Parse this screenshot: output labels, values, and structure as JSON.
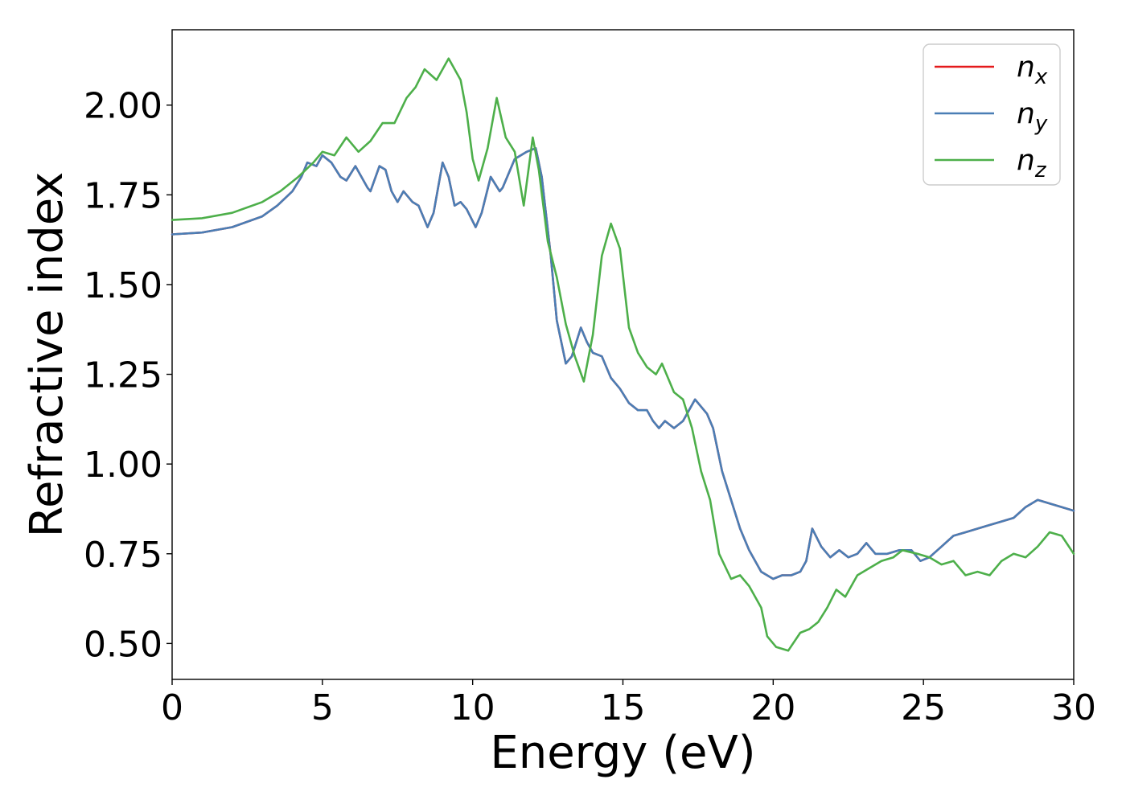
{
  "chart_data": {
    "type": "line",
    "title": "",
    "xlabel": "Energy (eV)",
    "ylabel": "Refractive index",
    "xlim": [
      0,
      30
    ],
    "ylim": [
      0.4,
      2.21
    ],
    "xticks": [
      0,
      5,
      10,
      15,
      20,
      25,
      30
    ],
    "xtick_labels": [
      "0",
      "5",
      "10",
      "15",
      "20",
      "25",
      "30"
    ],
    "yticks": [
      0.5,
      0.75,
      1.0,
      1.25,
      1.5,
      1.75,
      2.0
    ],
    "ytick_labels": [
      "0.50",
      "0.75",
      "1.00",
      "1.25",
      "1.50",
      "1.75",
      "2.00"
    ],
    "grid": false,
    "legend_position": "top-right",
    "series": [
      {
        "name": "n_x",
        "label_base": "n",
        "label_sub": "x",
        "color": "#e41a1c",
        "points": [
          [
            0,
            1.64
          ],
          [
            1,
            1.645
          ],
          [
            2,
            1.66
          ],
          [
            3,
            1.69
          ],
          [
            3.5,
            1.72
          ],
          [
            4,
            1.76
          ],
          [
            4.3,
            1.8
          ],
          [
            4.5,
            1.84
          ],
          [
            4.8,
            1.83
          ],
          [
            5,
            1.86
          ],
          [
            5.3,
            1.84
          ],
          [
            5.6,
            1.8
          ],
          [
            5.8,
            1.79
          ],
          [
            6.1,
            1.83
          ],
          [
            6.5,
            1.77
          ],
          [
            6.6,
            1.76
          ],
          [
            6.9,
            1.83
          ],
          [
            7.1,
            1.82
          ],
          [
            7.3,
            1.76
          ],
          [
            7.5,
            1.73
          ],
          [
            7.7,
            1.76
          ],
          [
            8,
            1.73
          ],
          [
            8.2,
            1.72
          ],
          [
            8.5,
            1.66
          ],
          [
            8.7,
            1.7
          ],
          [
            9,
            1.84
          ],
          [
            9.2,
            1.8
          ],
          [
            9.4,
            1.72
          ],
          [
            9.6,
            1.73
          ],
          [
            9.8,
            1.71
          ],
          [
            10.1,
            1.66
          ],
          [
            10.3,
            1.7
          ],
          [
            10.6,
            1.8
          ],
          [
            10.9,
            1.76
          ],
          [
            11,
            1.77
          ],
          [
            11.4,
            1.85
          ],
          [
            11.8,
            1.87
          ],
          [
            12.1,
            1.88
          ],
          [
            12.3,
            1.8
          ],
          [
            12.6,
            1.58
          ],
          [
            12.8,
            1.4
          ],
          [
            13.1,
            1.28
          ],
          [
            13.3,
            1.3
          ],
          [
            13.6,
            1.38
          ],
          [
            13.8,
            1.34
          ],
          [
            14,
            1.31
          ],
          [
            14.3,
            1.3
          ],
          [
            14.6,
            1.24
          ],
          [
            14.9,
            1.21
          ],
          [
            15.2,
            1.17
          ],
          [
            15.5,
            1.15
          ],
          [
            15.8,
            1.15
          ],
          [
            16,
            1.12
          ],
          [
            16.2,
            1.1
          ],
          [
            16.4,
            1.12
          ],
          [
            16.7,
            1.1
          ],
          [
            17,
            1.12
          ],
          [
            17.4,
            1.18
          ],
          [
            17.8,
            1.14
          ],
          [
            18,
            1.1
          ],
          [
            18.3,
            0.98
          ],
          [
            18.6,
            0.9
          ],
          [
            18.9,
            0.82
          ],
          [
            19.2,
            0.76
          ],
          [
            19.6,
            0.7
          ],
          [
            20,
            0.68
          ],
          [
            20.3,
            0.69
          ],
          [
            20.6,
            0.69
          ],
          [
            20.9,
            0.7
          ],
          [
            21.1,
            0.73
          ],
          [
            21.3,
            0.82
          ],
          [
            21.6,
            0.77
          ],
          [
            21.9,
            0.74
          ],
          [
            22.2,
            0.76
          ],
          [
            22.5,
            0.74
          ],
          [
            22.8,
            0.75
          ],
          [
            23.1,
            0.78
          ],
          [
            23.4,
            0.75
          ],
          [
            23.8,
            0.75
          ],
          [
            24.2,
            0.76
          ],
          [
            24.6,
            0.76
          ],
          [
            24.9,
            0.73
          ],
          [
            25.2,
            0.74
          ],
          [
            25.6,
            0.77
          ],
          [
            26,
            0.8
          ],
          [
            26.4,
            0.81
          ],
          [
            26.8,
            0.82
          ],
          [
            27.2,
            0.83
          ],
          [
            27.6,
            0.84
          ],
          [
            28,
            0.85
          ],
          [
            28.4,
            0.88
          ],
          [
            28.8,
            0.9
          ],
          [
            29.2,
            0.89
          ],
          [
            29.6,
            0.88
          ],
          [
            30,
            0.87
          ]
        ]
      },
      {
        "name": "n_y",
        "label_base": "n",
        "label_sub": "y",
        "color": "#4a7eb5",
        "points": [
          [
            0,
            1.64
          ],
          [
            1,
            1.645
          ],
          [
            2,
            1.66
          ],
          [
            3,
            1.69
          ],
          [
            3.5,
            1.72
          ],
          [
            4,
            1.76
          ],
          [
            4.3,
            1.8
          ],
          [
            4.5,
            1.84
          ],
          [
            4.8,
            1.83
          ],
          [
            5,
            1.86
          ],
          [
            5.3,
            1.84
          ],
          [
            5.6,
            1.8
          ],
          [
            5.8,
            1.79
          ],
          [
            6.1,
            1.83
          ],
          [
            6.5,
            1.77
          ],
          [
            6.6,
            1.76
          ],
          [
            6.9,
            1.83
          ],
          [
            7.1,
            1.82
          ],
          [
            7.3,
            1.76
          ],
          [
            7.5,
            1.73
          ],
          [
            7.7,
            1.76
          ],
          [
            8,
            1.73
          ],
          [
            8.2,
            1.72
          ],
          [
            8.5,
            1.66
          ],
          [
            8.7,
            1.7
          ],
          [
            9,
            1.84
          ],
          [
            9.2,
            1.8
          ],
          [
            9.4,
            1.72
          ],
          [
            9.6,
            1.73
          ],
          [
            9.8,
            1.71
          ],
          [
            10.1,
            1.66
          ],
          [
            10.3,
            1.7
          ],
          [
            10.6,
            1.8
          ],
          [
            10.9,
            1.76
          ],
          [
            11,
            1.77
          ],
          [
            11.4,
            1.85
          ],
          [
            11.8,
            1.87
          ],
          [
            12.1,
            1.88
          ],
          [
            12.3,
            1.8
          ],
          [
            12.6,
            1.58
          ],
          [
            12.8,
            1.4
          ],
          [
            13.1,
            1.28
          ],
          [
            13.3,
            1.3
          ],
          [
            13.6,
            1.38
          ],
          [
            13.8,
            1.34
          ],
          [
            14,
            1.31
          ],
          [
            14.3,
            1.3
          ],
          [
            14.6,
            1.24
          ],
          [
            14.9,
            1.21
          ],
          [
            15.2,
            1.17
          ],
          [
            15.5,
            1.15
          ],
          [
            15.8,
            1.15
          ],
          [
            16,
            1.12
          ],
          [
            16.2,
            1.1
          ],
          [
            16.4,
            1.12
          ],
          [
            16.7,
            1.1
          ],
          [
            17,
            1.12
          ],
          [
            17.4,
            1.18
          ],
          [
            17.8,
            1.14
          ],
          [
            18,
            1.1
          ],
          [
            18.3,
            0.98
          ],
          [
            18.6,
            0.9
          ],
          [
            18.9,
            0.82
          ],
          [
            19.2,
            0.76
          ],
          [
            19.6,
            0.7
          ],
          [
            20,
            0.68
          ],
          [
            20.3,
            0.69
          ],
          [
            20.6,
            0.69
          ],
          [
            20.9,
            0.7
          ],
          [
            21.1,
            0.73
          ],
          [
            21.3,
            0.82
          ],
          [
            21.6,
            0.77
          ],
          [
            21.9,
            0.74
          ],
          [
            22.2,
            0.76
          ],
          [
            22.5,
            0.74
          ],
          [
            22.8,
            0.75
          ],
          [
            23.1,
            0.78
          ],
          [
            23.4,
            0.75
          ],
          [
            23.8,
            0.75
          ],
          [
            24.2,
            0.76
          ],
          [
            24.6,
            0.76
          ],
          [
            24.9,
            0.73
          ],
          [
            25.2,
            0.74
          ],
          [
            25.6,
            0.77
          ],
          [
            26,
            0.8
          ],
          [
            26.4,
            0.81
          ],
          [
            26.8,
            0.82
          ],
          [
            27.2,
            0.83
          ],
          [
            27.6,
            0.84
          ],
          [
            28,
            0.85
          ],
          [
            28.4,
            0.88
          ],
          [
            28.8,
            0.9
          ],
          [
            29.2,
            0.89
          ],
          [
            29.6,
            0.88
          ],
          [
            30,
            0.87
          ]
        ]
      },
      {
        "name": "n_z",
        "label_base": "n",
        "label_sub": "z",
        "color": "#4daf4a",
        "points": [
          [
            0,
            1.68
          ],
          [
            1,
            1.685
          ],
          [
            2,
            1.7
          ],
          [
            3,
            1.73
          ],
          [
            3.6,
            1.76
          ],
          [
            4.2,
            1.8
          ],
          [
            4.7,
            1.84
          ],
          [
            5,
            1.87
          ],
          [
            5.4,
            1.86
          ],
          [
            5.8,
            1.91
          ],
          [
            6.2,
            1.87
          ],
          [
            6.6,
            1.9
          ],
          [
            7,
            1.95
          ],
          [
            7.4,
            1.95
          ],
          [
            7.8,
            2.02
          ],
          [
            8.1,
            2.05
          ],
          [
            8.4,
            2.1
          ],
          [
            8.8,
            2.07
          ],
          [
            9.2,
            2.13
          ],
          [
            9.6,
            2.07
          ],
          [
            9.8,
            1.98
          ],
          [
            10,
            1.85
          ],
          [
            10.2,
            1.79
          ],
          [
            10.5,
            1.88
          ],
          [
            10.8,
            2.02
          ],
          [
            11.1,
            1.91
          ],
          [
            11.4,
            1.87
          ],
          [
            11.7,
            1.72
          ],
          [
            12,
            1.91
          ],
          [
            12.2,
            1.82
          ],
          [
            12.5,
            1.62
          ],
          [
            12.8,
            1.52
          ],
          [
            13.1,
            1.39
          ],
          [
            13.4,
            1.3
          ],
          [
            13.7,
            1.23
          ],
          [
            14,
            1.36
          ],
          [
            14.3,
            1.58
          ],
          [
            14.6,
            1.67
          ],
          [
            14.9,
            1.6
          ],
          [
            15.2,
            1.38
          ],
          [
            15.5,
            1.31
          ],
          [
            15.8,
            1.27
          ],
          [
            16.1,
            1.25
          ],
          [
            16.3,
            1.28
          ],
          [
            16.7,
            1.2
          ],
          [
            17,
            1.18
          ],
          [
            17.3,
            1.1
          ],
          [
            17.6,
            0.98
          ],
          [
            17.9,
            0.9
          ],
          [
            18.2,
            0.75
          ],
          [
            18.6,
            0.68
          ],
          [
            18.9,
            0.69
          ],
          [
            19.2,
            0.66
          ],
          [
            19.6,
            0.6
          ],
          [
            19.8,
            0.52
          ],
          [
            20.1,
            0.49
          ],
          [
            20.5,
            0.48
          ],
          [
            20.9,
            0.53
          ],
          [
            21.2,
            0.54
          ],
          [
            21.5,
            0.56
          ],
          [
            21.8,
            0.6
          ],
          [
            22.1,
            0.65
          ],
          [
            22.4,
            0.63
          ],
          [
            22.8,
            0.69
          ],
          [
            23.2,
            0.71
          ],
          [
            23.6,
            0.73
          ],
          [
            24,
            0.74
          ],
          [
            24.3,
            0.76
          ],
          [
            24.8,
            0.75
          ],
          [
            25.2,
            0.74
          ],
          [
            25.6,
            0.72
          ],
          [
            26,
            0.73
          ],
          [
            26.4,
            0.69
          ],
          [
            26.8,
            0.7
          ],
          [
            27.2,
            0.69
          ],
          [
            27.6,
            0.73
          ],
          [
            28,
            0.75
          ],
          [
            28.4,
            0.74
          ],
          [
            28.8,
            0.77
          ],
          [
            29.2,
            0.81
          ],
          [
            29.6,
            0.8
          ],
          [
            30,
            0.75
          ]
        ]
      }
    ]
  }
}
